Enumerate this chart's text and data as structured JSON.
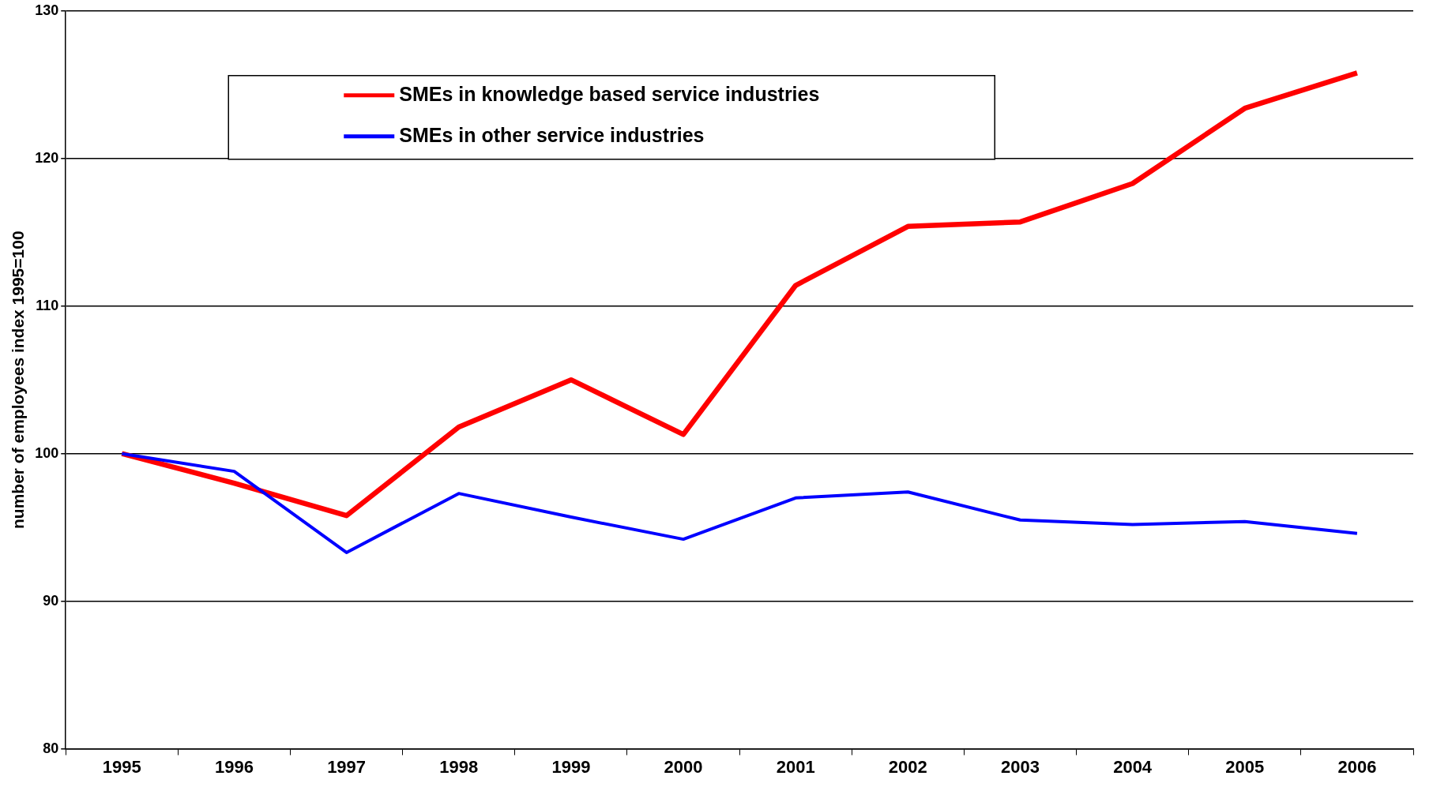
{
  "chart_data": {
    "type": "line",
    "ylabel": "number of employees index 1995=100",
    "categories": [
      "1995",
      "1996",
      "1997",
      "1998",
      "1999",
      "2000",
      "2001",
      "2002",
      "2003",
      "2004",
      "2005",
      "2006"
    ],
    "series": [
      {
        "name": "SMEs in knowledge based service industries",
        "color": "#ff0000",
        "values": [
          100,
          98,
          95.8,
          101.8,
          105,
          101.3,
          111.4,
          115.4,
          115.7,
          118.3,
          123.4,
          125.8
        ]
      },
      {
        "name": "SMEs in other service industries",
        "color": "#0000ff",
        "values": [
          100,
          98.8,
          93.3,
          97.3,
          95.7,
          94.2,
          97,
          97.4,
          95.5,
          95.2,
          95.4,
          94.6
        ]
      }
    ],
    "ylim": [
      80,
      130
    ],
    "yticks": [
      80,
      90,
      100,
      110,
      120,
      130
    ],
    "grid": "y",
    "legend": "top",
    "marker": "none",
    "line_style": "solid"
  }
}
